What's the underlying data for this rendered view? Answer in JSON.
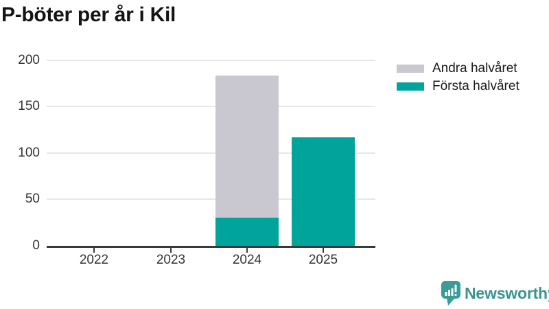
{
  "header": {
    "title": "P-böter per år i Kil"
  },
  "chart_data": {
    "type": "bar",
    "stacked": true,
    "title": "P-böter per år i Kil",
    "categories": [
      "2022",
      "2023",
      "2024",
      "2025"
    ],
    "series": [
      {
        "name": "Första halvåret",
        "color": "#00a49b",
        "values": [
          0,
          0,
          30,
          117
        ]
      },
      {
        "name": "Andra halvåret",
        "color": "#c9c8d1",
        "values": [
          0,
          0,
          153,
          0
        ]
      }
    ],
    "xlabel": "",
    "ylabel": "",
    "ylim": [
      0,
      200
    ],
    "yticks": [
      0,
      50,
      100,
      150,
      200
    ],
    "grid": "horizontal-gridlines",
    "legend_position": "top-right"
  },
  "legend": {
    "items": [
      {
        "label": "Andra halvåret",
        "color": "#c9c8d1"
      },
      {
        "label": "Första halvåret",
        "color": "#00a49b"
      }
    ]
  },
  "footer": {
    "brand": "Newsworthy"
  },
  "colors": {
    "bar_teal": "#00a49b",
    "bar_gray": "#c9c8d1",
    "gridline": "#e7e7e7",
    "axis": "#3a3a3a",
    "tick_text": "#333333",
    "title_text": "#141414",
    "logo_teal": "#3a9b97",
    "logo_text": "#3b948f"
  }
}
